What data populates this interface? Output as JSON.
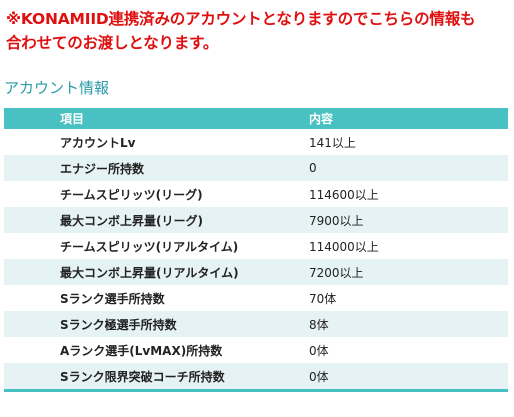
{
  "notice": {
    "line1": "※KONAMIID連携済みのアカウントとなりますのでこちらの情報も",
    "line2": "合わせてのお渡しとなります。"
  },
  "section_title": "アカウント情報",
  "table": {
    "headers": {
      "item": "項目",
      "content": "内容"
    },
    "rows": [
      {
        "item": "アカウントLv",
        "content": "141以上"
      },
      {
        "item": "エナジー所持数",
        "content": "0"
      },
      {
        "item": "チームスピリッツ(リーグ)",
        "content": "114600以上"
      },
      {
        "item": "最大コンボ上昇量(リーグ)",
        "content": "7900以上"
      },
      {
        "item": "チームスピリッツ(リアルタイム)",
        "content": "114000以上"
      },
      {
        "item": "最大コンボ上昇量(リアルタイム)",
        "content": "7200以上"
      },
      {
        "item": "Sランク選手所持数",
        "content": "70体"
      },
      {
        "item": "Sランク極選手所持数",
        "content": "8体"
      },
      {
        "item": "Aランク選手(LvMAX)所持数",
        "content": "0体"
      },
      {
        "item": "Sランク限界突破コーチ所持数",
        "content": "0体"
      }
    ]
  },
  "colors": {
    "notice": "#e01010",
    "title": "#2a9aa8",
    "header_bg": "#49c1c2",
    "row_alt_bg": "#e6f3f4"
  }
}
